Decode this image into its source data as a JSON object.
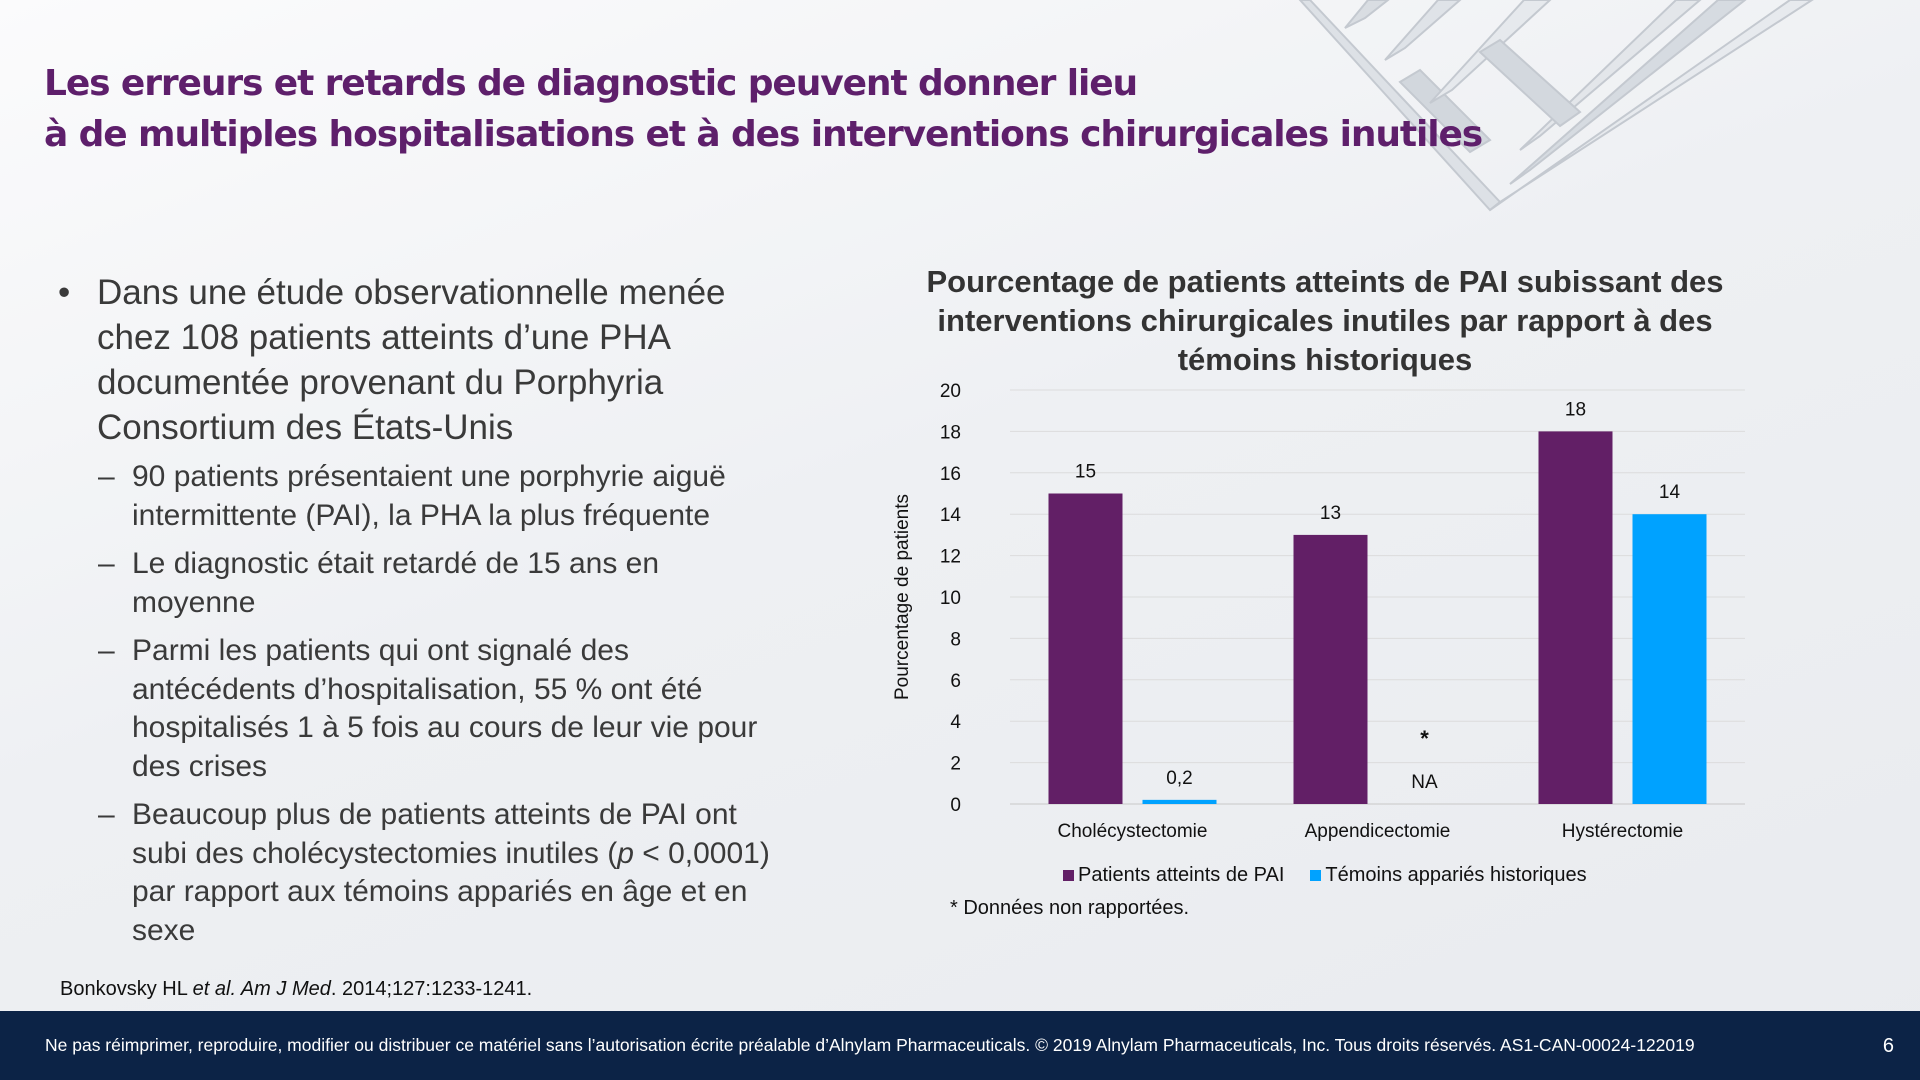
{
  "slide": {
    "title_line1": "Les erreurs et retards de diagnostic peuvent donner lieu",
    "title_line2": "à de multiples hospitalisations et à des interventions chirurgicales inutiles",
    "bullet_symbol": "•",
    "dash_symbol": "–",
    "main_bullet": "Dans une étude observationnelle menée chez 108 patients atteints d’une PHA documentée provenant du Porphyria Consortium des États-Unis",
    "sub_bullets": [
      "90 patients présentaient une porphyrie aiguë intermittente (PAI), la PHA la plus fréquente",
      "Le diagnostic était retardé de 15 ans en moyenne",
      "Parmi les patients qui ont signalé des antécédents d’hospitalisation, 55 % ont été hospitalisés 1 à 5 fois au cours de leur vie pour des crises"
    ],
    "last_bullet": {
      "before": "Beaucoup plus de patients atteints de PAI ont subi des cholécystectomies inutiles (",
      "p_symbol": "p",
      "after": " < 0,0001) par rapport aux témoins appariés en âge et en sexe"
    },
    "reference": {
      "authors": "Bonkovsky HL ",
      "etal": "et al.",
      "journal": " Am J Med",
      "details": ". 2014;127:1233-1241."
    },
    "footer_text": "Ne pas réimprimer, reproduire, modifier ou distribuer ce matériel sans l’autorisation écrite préalable d’Alnylam Pharmaceuticals. © 2019 Alnylam Pharmaceuticals, Inc. Tous droits réservés. AS1-CAN-00024-122019",
    "page_number": "6"
  },
  "colors": {
    "title": "#5e1f6b",
    "series_pai": "#621f66",
    "series_temoins": "#00a2ff",
    "footer_bg": "#0c2346"
  },
  "chart_data": {
    "type": "bar",
    "title": "Pourcentage de patients atteints de PAI subissant des interventions chirurgicales inutiles par rapport à des témoins historiques",
    "title_lines": [
      "Pourcentage de patients atteints de PAI subissant des",
      "interventions chirurgicales inutiles par rapport à des",
      "témoins historiques"
    ],
    "ylabel": "Pourcentage de patients",
    "ylim": [
      0,
      20
    ],
    "yticks": [
      "0",
      "2",
      "4",
      "6",
      "8",
      "10",
      "12",
      "14",
      "16",
      "18",
      "20"
    ],
    "grid": true,
    "categories": [
      "Cholécystectomie",
      "Appendicectomie",
      "Hystérectomie"
    ],
    "series": [
      {
        "name": "Patients atteints de PAI",
        "values": [
          15,
          13,
          18
        ],
        "labels": [
          "15",
          "13",
          "18"
        ]
      },
      {
        "name": "Témoins appariés historiques",
        "values": [
          0.2,
          null,
          14
        ],
        "labels": [
          "0,2",
          "NA",
          "14"
        ]
      }
    ],
    "missing_marker": "*",
    "legend_position": "bottom",
    "note": "* Données non rapportées."
  }
}
